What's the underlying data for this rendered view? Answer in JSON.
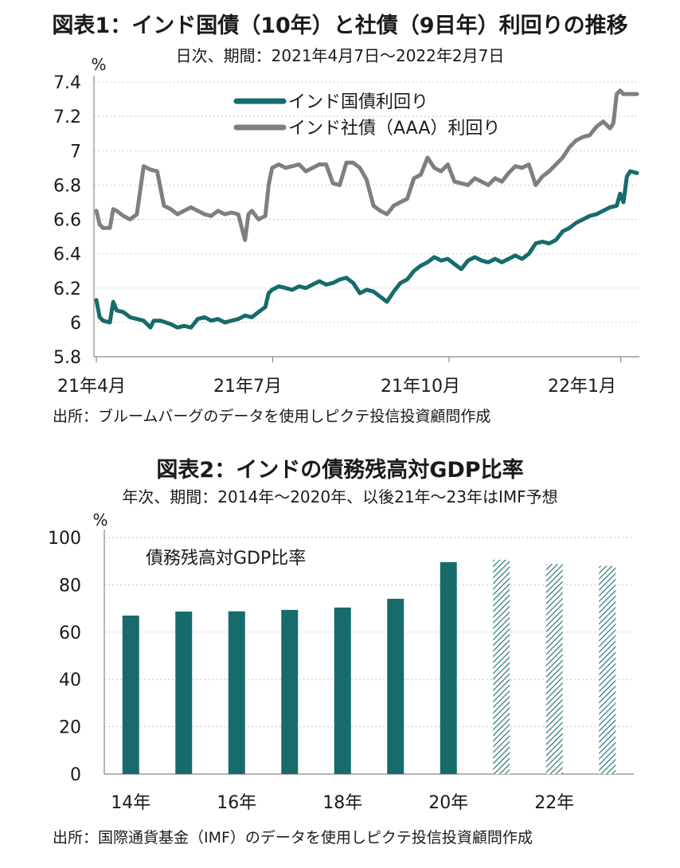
{
  "chart_data": [
    {
      "type": "line",
      "title": "図表1：インド国債（10年）と社債（9目年）利回りの推移",
      "subtitle": "日次、期間：2021年4月7日～2022年2月7日",
      "unit": "%",
      "ylim": [
        5.8,
        7.4
      ],
      "yticks": [
        "7.4",
        "7.2",
        "7",
        "6.8",
        "6.6",
        "6.4",
        "6.2",
        "6",
        "5.8"
      ],
      "xticks": [
        "21年4月",
        "21年7月",
        "21年10月",
        "22年1月"
      ],
      "legend": [
        "インド国債利回り",
        "インド社債（AAA）利回り"
      ],
      "legend_position": "top-center",
      "grid": true,
      "source": "出所：ブルームバーグのデータを使用しピクテ投信投資顧問作成",
      "series": [
        {
          "name": "インド国債利回り",
          "color": "#176b6b",
          "points": [
            [
              0.0,
              6.13
            ],
            [
              0.5,
              6.03
            ],
            [
              1.0,
              6.01
            ],
            [
              2.0,
              6.0
            ],
            [
              2.5,
              6.12
            ],
            [
              3.0,
              6.07
            ],
            [
              4.0,
              6.06
            ],
            [
              5.0,
              6.03
            ],
            [
              6.0,
              6.02
            ],
            [
              7.0,
              6.01
            ],
            [
              8.0,
              5.97
            ],
            [
              8.5,
              6.01
            ],
            [
              9.5,
              6.01
            ],
            [
              11.0,
              5.99
            ],
            [
              12.0,
              5.97
            ],
            [
              13.0,
              5.98
            ],
            [
              14.0,
              5.97
            ],
            [
              15.0,
              6.02
            ],
            [
              16.0,
              6.03
            ],
            [
              17.0,
              6.01
            ],
            [
              18.0,
              6.02
            ],
            [
              19.0,
              6.0
            ],
            [
              20.0,
              6.01
            ],
            [
              21.0,
              6.02
            ],
            [
              22.0,
              6.04
            ],
            [
              23.0,
              6.03
            ],
            [
              24.0,
              6.06
            ],
            [
              25.0,
              6.09
            ],
            [
              25.5,
              6.17
            ],
            [
              26.0,
              6.19
            ],
            [
              27.0,
              6.21
            ],
            [
              28.0,
              6.2
            ],
            [
              29.0,
              6.19
            ],
            [
              30.0,
              6.21
            ],
            [
              31.0,
              6.2
            ],
            [
              32.0,
              6.22
            ],
            [
              33.0,
              6.24
            ],
            [
              34.0,
              6.22
            ],
            [
              35.0,
              6.23
            ],
            [
              36.0,
              6.25
            ],
            [
              37.0,
              6.26
            ],
            [
              38.0,
              6.23
            ],
            [
              39.0,
              6.17
            ],
            [
              40.0,
              6.19
            ],
            [
              41.0,
              6.18
            ],
            [
              42.0,
              6.15
            ],
            [
              43.0,
              6.12
            ],
            [
              44.0,
              6.18
            ],
            [
              45.0,
              6.23
            ],
            [
              46.0,
              6.25
            ],
            [
              47.0,
              6.3
            ],
            [
              48.0,
              6.33
            ],
            [
              49.0,
              6.35
            ],
            [
              50.0,
              6.38
            ],
            [
              51.0,
              6.36
            ],
            [
              52.0,
              6.37
            ],
            [
              53.0,
              6.34
            ],
            [
              54.0,
              6.31
            ],
            [
              55.0,
              6.36
            ],
            [
              56.0,
              6.38
            ],
            [
              57.0,
              6.36
            ],
            [
              58.0,
              6.35
            ],
            [
              59.0,
              6.37
            ],
            [
              60.0,
              6.35
            ],
            [
              61.0,
              6.37
            ],
            [
              62.0,
              6.39
            ],
            [
              63.0,
              6.37
            ],
            [
              64.0,
              6.4
            ],
            [
              65.0,
              6.46
            ],
            [
              66.0,
              6.47
            ],
            [
              67.0,
              6.46
            ],
            [
              68.0,
              6.48
            ],
            [
              69.0,
              6.53
            ],
            [
              70.0,
              6.55
            ],
            [
              71.0,
              6.58
            ],
            [
              72.0,
              6.6
            ],
            [
              73.0,
              6.62
            ],
            [
              74.0,
              6.63
            ],
            [
              75.0,
              6.65
            ],
            [
              76.0,
              6.67
            ],
            [
              77.0,
              6.68
            ],
            [
              77.5,
              6.75
            ],
            [
              78.0,
              6.7
            ],
            [
              78.5,
              6.85
            ],
            [
              79.0,
              6.88
            ],
            [
              80.0,
              6.87
            ]
          ]
        },
        {
          "name": "インド社債（AAA）利回り",
          "color": "#7f7f7f",
          "points": [
            [
              0.0,
              6.65
            ],
            [
              0.5,
              6.57
            ],
            [
              1.0,
              6.55
            ],
            [
              2.0,
              6.55
            ],
            [
              2.5,
              6.66
            ],
            [
              3.0,
              6.65
            ],
            [
              4.0,
              6.62
            ],
            [
              5.0,
              6.6
            ],
            [
              6.0,
              6.63
            ],
            [
              7.0,
              6.91
            ],
            [
              8.0,
              6.89
            ],
            [
              9.0,
              6.88
            ],
            [
              10.0,
              6.68
            ],
            [
              11.0,
              6.66
            ],
            [
              12.0,
              6.63
            ],
            [
              13.0,
              6.65
            ],
            [
              14.0,
              6.67
            ],
            [
              15.0,
              6.65
            ],
            [
              16.0,
              6.63
            ],
            [
              17.0,
              6.62
            ],
            [
              18.0,
              6.65
            ],
            [
              19.0,
              6.63
            ],
            [
              20.0,
              6.64
            ],
            [
              21.0,
              6.63
            ],
            [
              22.0,
              6.48
            ],
            [
              22.5,
              6.63
            ],
            [
              23.0,
              6.65
            ],
            [
              24.0,
              6.6
            ],
            [
              25.0,
              6.62
            ],
            [
              25.5,
              6.8
            ],
            [
              26.0,
              6.9
            ],
            [
              27.0,
              6.92
            ],
            [
              28.0,
              6.9
            ],
            [
              29.0,
              6.91
            ],
            [
              30.0,
              6.92
            ],
            [
              31.0,
              6.88
            ],
            [
              32.0,
              6.9
            ],
            [
              33.0,
              6.92
            ],
            [
              34.0,
              6.92
            ],
            [
              35.0,
              6.81
            ],
            [
              36.0,
              6.8
            ],
            [
              37.0,
              6.93
            ],
            [
              38.0,
              6.93
            ],
            [
              39.0,
              6.9
            ],
            [
              40.0,
              6.83
            ],
            [
              41.0,
              6.68
            ],
            [
              42.0,
              6.65
            ],
            [
              43.0,
              6.63
            ],
            [
              44.0,
              6.68
            ],
            [
              45.0,
              6.7
            ],
            [
              46.0,
              6.72
            ],
            [
              47.0,
              6.84
            ],
            [
              48.0,
              6.86
            ],
            [
              49.0,
              6.96
            ],
            [
              50.0,
              6.9
            ],
            [
              51.0,
              6.88
            ],
            [
              52.0,
              6.92
            ],
            [
              53.0,
              6.82
            ],
            [
              54.0,
              6.81
            ],
            [
              55.0,
              6.8
            ],
            [
              56.0,
              6.84
            ],
            [
              57.0,
              6.82
            ],
            [
              58.0,
              6.8
            ],
            [
              59.0,
              6.84
            ],
            [
              60.0,
              6.82
            ],
            [
              61.0,
              6.87
            ],
            [
              62.0,
              6.91
            ],
            [
              63.0,
              6.9
            ],
            [
              64.0,
              6.92
            ],
            [
              65.0,
              6.8
            ],
            [
              66.0,
              6.85
            ],
            [
              67.0,
              6.88
            ],
            [
              68.0,
              6.92
            ],
            [
              69.0,
              6.96
            ],
            [
              70.0,
              7.02
            ],
            [
              71.0,
              7.06
            ],
            [
              72.0,
              7.08
            ],
            [
              73.0,
              7.09
            ],
            [
              74.0,
              7.14
            ],
            [
              75.0,
              7.17
            ],
            [
              76.0,
              7.13
            ],
            [
              76.5,
              7.16
            ],
            [
              77.0,
              7.33
            ],
            [
              77.5,
              7.35
            ],
            [
              78.0,
              7.33
            ],
            [
              80.0,
              7.33
            ]
          ]
        }
      ]
    },
    {
      "type": "bar",
      "title": "図表2：インドの債務残高対GDP比率",
      "subtitle": "年次、期間：2014年～2020年、以後21年～23年はIMF予想",
      "unit": "%",
      "ylim": [
        0,
        100
      ],
      "yticks": [
        "100",
        "80",
        "60",
        "40",
        "20",
        "0"
      ],
      "categories": [
        "2014",
        "2015",
        "2016",
        "2017",
        "2018",
        "2019",
        "2020",
        "2021",
        "2022",
        "2023"
      ],
      "xtick_labels": [
        "14年",
        "",
        "16年",
        "",
        "18年",
        "",
        "20年",
        "",
        "22年",
        ""
      ],
      "series": [
        {
          "name": "債務残高対GDP比率",
          "values": [
            67,
            68.7,
            68.8,
            69.4,
            70.4,
            74.1,
            89.6,
            90.6,
            88.8,
            88.0
          ],
          "forecast": [
            false,
            false,
            false,
            false,
            false,
            false,
            false,
            true,
            true,
            true
          ]
        }
      ],
      "color": "#176b6b",
      "grid": true,
      "source": "出所：国際通貨基金（IMF）のデータを使用しピクテ投信投資顧問作成"
    }
  ]
}
